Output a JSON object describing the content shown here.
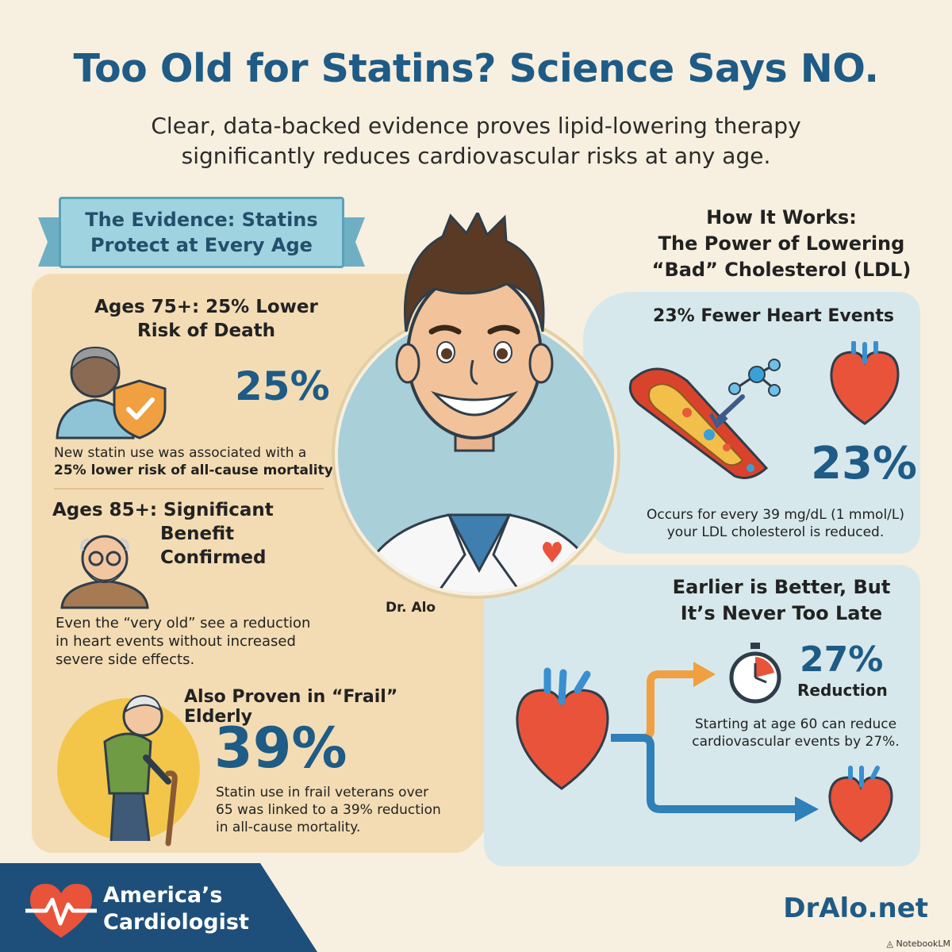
{
  "header": {
    "title": "Too Old for Statins? Science Says NO.",
    "subtitle_line1": "Clear, data-backed evidence proves lipid-lowering therapy",
    "subtitle_line2": "significantly reduces cardiovascular risks at any age."
  },
  "evidence": {
    "ribbon_line1": "The Evidence: Statins",
    "ribbon_line2": "Protect at Every Age",
    "age75": {
      "heading_line1": "Ages 75+: 25% Lower",
      "heading_line2": "Risk of Death",
      "stat": "25%",
      "text_line1": "New statin use was associated with a",
      "text_line2": "25% lower risk of all-cause mortality."
    },
    "age85": {
      "heading_line1": "Ages 85+: Significant",
      "heading_line2": "Benefit",
      "heading_line3": "Confirmed",
      "text_line1": "Even the “very old” see a reduction",
      "text_line2": "in heart events without increased",
      "text_line3": "severe side effects."
    },
    "frail": {
      "heading": "Also Proven in “Frail” Elderly",
      "stat": "39%",
      "text_line1": "Statin use in frail veterans over",
      "text_line2": "65 was linked to a 39% reduction",
      "text_line3": "in all-cause mortality."
    }
  },
  "doctor": {
    "badge": "Dr. Alo"
  },
  "how_it_works": {
    "heading_line1": "How It Works:",
    "heading_line2": "The Power of Lowering",
    "heading_line3": "“Bad” Cholesterol (LDL)",
    "fewer": {
      "heading": "23% Fewer Heart Events",
      "stat": "23%",
      "text_line1": "Occurs for every 39 mg/dL (1 mmol/L)",
      "text_line2": "your LDL cholesterol is reduced."
    },
    "earlier": {
      "heading_line1": "Earlier is Better, But",
      "heading_line2": "It’s Never Too Late",
      "stat": "27%",
      "stat_label": "Reduction",
      "text_line1": "Starting at age 60 can reduce",
      "text_line2": "cardiovascular events by 27%."
    }
  },
  "footer": {
    "brand_line1": "America’s",
    "brand_line2": "Cardiologist",
    "site": "DrAlo.net",
    "credit": "NotebookLM"
  },
  "colors": {
    "title_blue": "#1e5b86",
    "left_panel": "#f3dcb4",
    "right_panel": "#d7e8ec",
    "footer_band": "#1d4f7a",
    "accent_orange": "#f0a040",
    "heart_red": "#e8533a"
  }
}
